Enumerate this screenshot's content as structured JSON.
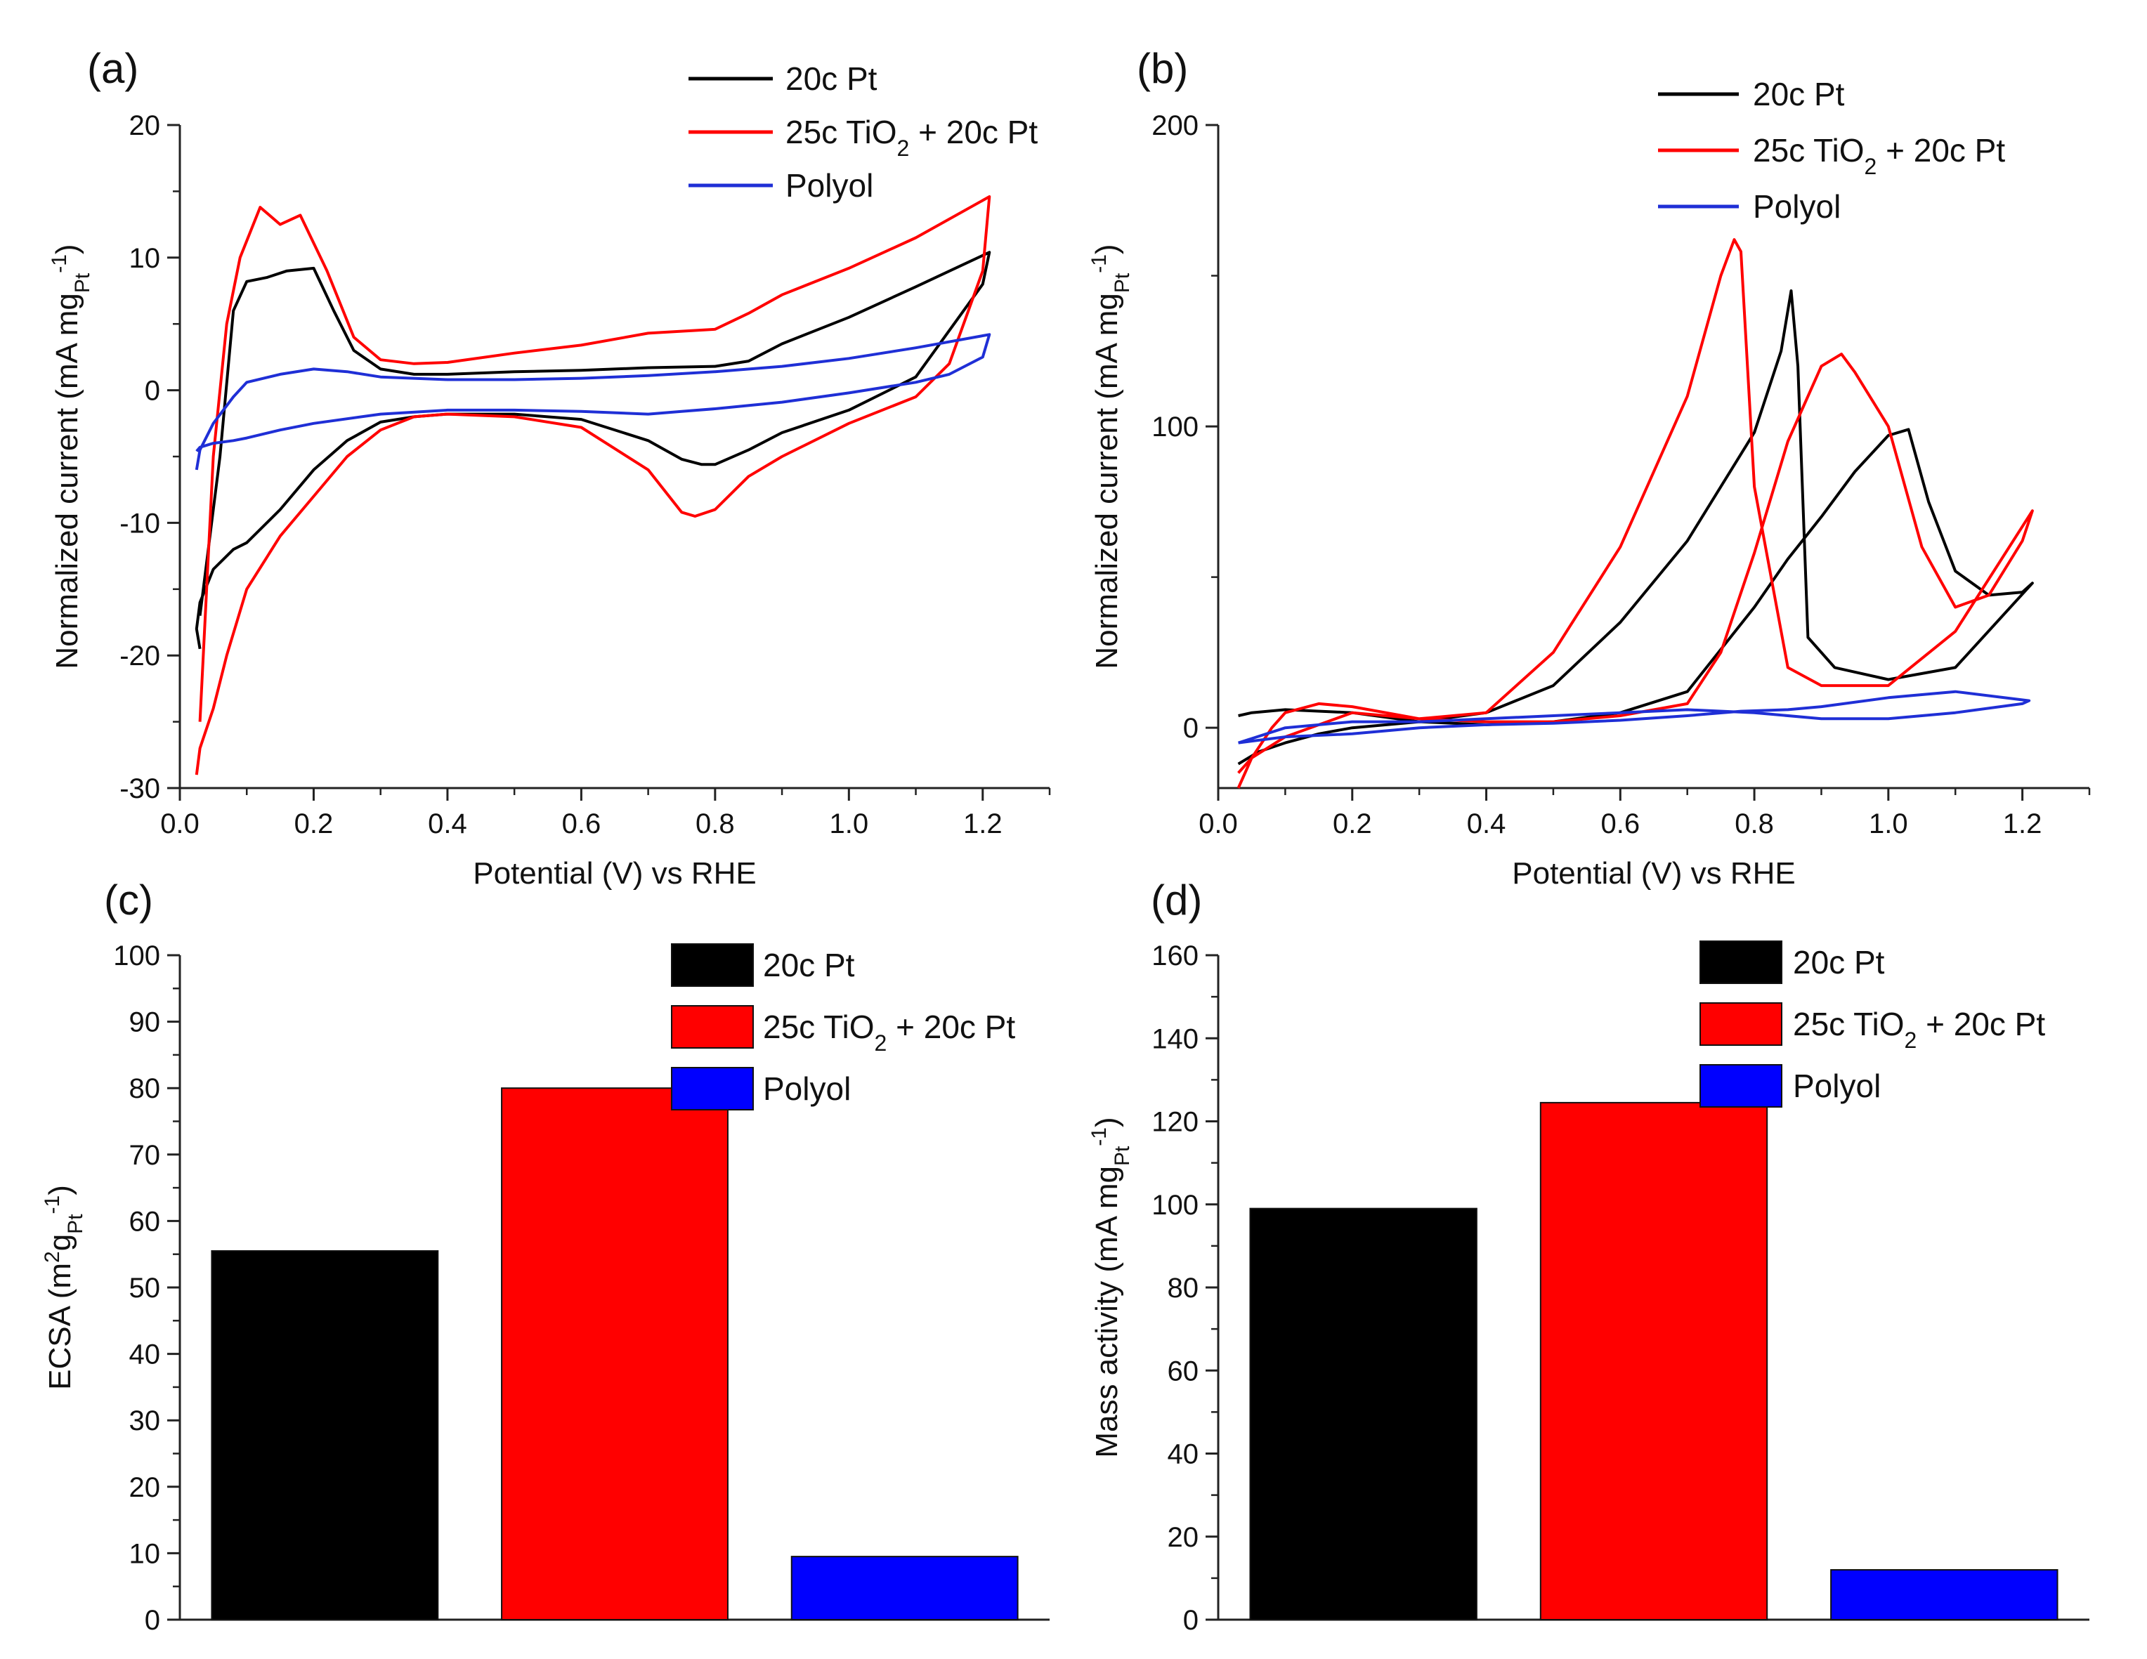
{
  "chart_data": [
    {
      "panel_label": "(a)",
      "type": "line",
      "xlabel": "Potential (V) vs RHE",
      "ylabel": "Normalized current (mA mg",
      "ylabel_sub": "Pt",
      "ylabel_sup": "-1",
      "ylabel_end": ")",
      "xlim": [
        0.0,
        1.3
      ],
      "ylim": [
        -30,
        20
      ],
      "xticks": [
        0.0,
        0.2,
        0.4,
        0.6,
        0.8,
        1.0,
        1.2
      ],
      "xtick_labels": [
        "0.0",
        "0.2",
        "0.4",
        "0.6",
        "0.8",
        "1.0",
        "1.2"
      ],
      "yticks": [
        -30,
        -20,
        -10,
        0,
        10,
        20
      ],
      "ytick_labels": [
        "-30",
        "-20",
        "-10",
        "0",
        "10",
        "20"
      ],
      "legend": [
        "20c Pt",
        "25c TiO|2| + 20c Pt",
        "Polyol"
      ],
      "series": [
        {
          "name": "20c Pt",
          "color": "#000000",
          "x": [
            0.03,
            0.06,
            0.08,
            0.1,
            0.13,
            0.16,
            0.2,
            0.23,
            0.26,
            0.3,
            0.35,
            0.4,
            0.5,
            0.6,
            0.7,
            0.8,
            0.85,
            0.9,
            1.0,
            1.1,
            1.21,
            1.2,
            1.1,
            1.0,
            0.9,
            0.85,
            0.8,
            0.78,
            0.75,
            0.7,
            0.6,
            0.5,
            0.4,
            0.35,
            0.3,
            0.25,
            0.2,
            0.15,
            0.1,
            0.08,
            0.05,
            0.03,
            0.025,
            0.03
          ],
          "y": [
            -17,
            -5,
            6,
            8.2,
            8.5,
            9.0,
            9.2,
            6,
            3,
            1.6,
            1.2,
            1.2,
            1.4,
            1.5,
            1.7,
            1.8,
            2.2,
            3.5,
            5.5,
            7.8,
            10.4,
            8,
            1,
            -1.5,
            -3.2,
            -4.5,
            -5.6,
            -5.6,
            -5.2,
            -3.8,
            -2.2,
            -1.8,
            -1.8,
            -2,
            -2.4,
            -3.8,
            -6,
            -9,
            -11.5,
            -12,
            -13.5,
            -16,
            -18,
            -19.5
          ]
        },
        {
          "name": "25c TiO2 + 20c Pt",
          "color": "#ff0000",
          "x": [
            0.03,
            0.05,
            0.07,
            0.09,
            0.12,
            0.15,
            0.18,
            0.22,
            0.26,
            0.3,
            0.35,
            0.4,
            0.5,
            0.6,
            0.7,
            0.8,
            0.85,
            0.9,
            1.0,
            1.1,
            1.21,
            1.2,
            1.15,
            1.1,
            1.0,
            0.9,
            0.85,
            0.8,
            0.77,
            0.75,
            0.7,
            0.6,
            0.5,
            0.4,
            0.35,
            0.3,
            0.25,
            0.2,
            0.15,
            0.1,
            0.07,
            0.05,
            0.03,
            0.025
          ],
          "y": [
            -25,
            -5,
            5,
            10,
            13.8,
            12.5,
            13.2,
            9,
            4,
            2.3,
            2,
            2.1,
            2.8,
            3.4,
            4.3,
            4.6,
            5.8,
            7.2,
            9.2,
            11.5,
            14.6,
            9,
            2,
            -0.5,
            -2.5,
            -5,
            -6.5,
            -9,
            -9.5,
            -9.2,
            -6,
            -2.8,
            -2,
            -1.8,
            -2,
            -3,
            -5,
            -8,
            -11,
            -15,
            -20,
            -24,
            -27,
            -29
          ]
        },
        {
          "name": "Polyol",
          "color": "#1f2fd6",
          "x": [
            0.025,
            0.03,
            0.05,
            0.08,
            0.1,
            0.15,
            0.2,
            0.25,
            0.3,
            0.4,
            0.5,
            0.6,
            0.7,
            0.8,
            0.9,
            1.0,
            1.1,
            1.21,
            1.2,
            1.15,
            1.1,
            1.0,
            0.9,
            0.8,
            0.75,
            0.7,
            0.6,
            0.5,
            0.4,
            0.3,
            0.2,
            0.15,
            0.1,
            0.08,
            0.05,
            0.03,
            0.025
          ],
          "y": [
            -6,
            -4.5,
            -2.5,
            -0.5,
            0.6,
            1.2,
            1.6,
            1.4,
            1.0,
            0.8,
            0.8,
            0.9,
            1.1,
            1.4,
            1.8,
            2.4,
            3.2,
            4.2,
            2.5,
            1.2,
            0.6,
            -0.2,
            -0.9,
            -1.4,
            -1.6,
            -1.8,
            -1.6,
            -1.5,
            -1.5,
            -1.8,
            -2.5,
            -3.0,
            -3.6,
            -3.8,
            -4.0,
            -4.3,
            -4.6
          ]
        }
      ]
    },
    {
      "panel_label": "(b)",
      "type": "line",
      "xlabel": "Potential (V) vs RHE",
      "ylabel": "Normalized current (mA mg",
      "ylabel_sub": "Pt",
      "ylabel_sup": "-1",
      "ylabel_end": ")",
      "xlim": [
        0.0,
        1.3
      ],
      "ylim": [
        -20,
        200
      ],
      "xticks": [
        0.0,
        0.2,
        0.4,
        0.6,
        0.8,
        1.0,
        1.2
      ],
      "xtick_labels": [
        "0.0",
        "0.2",
        "0.4",
        "0.6",
        "0.8",
        "1.0",
        "1.2"
      ],
      "yticks": [
        0,
        100,
        200
      ],
      "ytick_labels": [
        "0",
        "100",
        "200"
      ],
      "legend": [
        "20c Pt",
        "25c TiO|2| + 20c Pt",
        "Polyol"
      ],
      "series": [
        {
          "name": "20c Pt",
          "color": "#000000",
          "x": [
            0.03,
            0.06,
            0.1,
            0.15,
            0.2,
            0.3,
            0.4,
            0.5,
            0.6,
            0.7,
            0.8,
            0.84,
            0.855,
            0.865,
            0.88,
            0.92,
            1.0,
            1.1,
            1.215,
            1.2,
            1.15,
            1.1,
            1.06,
            1.03,
            1.0,
            0.95,
            0.9,
            0.85,
            0.8,
            0.7,
            0.6,
            0.5,
            0.4,
            0.3,
            0.2,
            0.1,
            0.05,
            0.03
          ],
          "y": [
            -12,
            -8,
            -5,
            -2,
            0,
            2,
            5,
            14,
            35,
            62,
            98,
            125,
            145,
            120,
            30,
            20,
            16,
            20,
            48,
            45,
            44,
            52,
            75,
            99,
            97,
            85,
            70,
            56,
            40,
            12,
            5,
            2,
            1,
            2,
            5,
            6,
            5,
            4
          ]
        },
        {
          "name": "25c TiO2 + 20c Pt",
          "color": "#ff0000",
          "x": [
            0.03,
            0.05,
            0.08,
            0.1,
            0.15,
            0.2,
            0.3,
            0.4,
            0.5,
            0.6,
            0.7,
            0.75,
            0.77,
            0.78,
            0.8,
            0.85,
            0.9,
            1.0,
            1.1,
            1.215,
            1.2,
            1.15,
            1.1,
            1.05,
            1.0,
            0.95,
            0.93,
            0.9,
            0.85,
            0.8,
            0.75,
            0.7,
            0.6,
            0.5,
            0.4,
            0.3,
            0.2,
            0.1,
            0.05,
            0.03
          ],
          "y": [
            -20,
            -10,
            0,
            5,
            8,
            7,
            3,
            5,
            25,
            60,
            110,
            150,
            162,
            158,
            80,
            20,
            14,
            14,
            32,
            72,
            62,
            44,
            40,
            60,
            100,
            118,
            124,
            120,
            95,
            58,
            25,
            8,
            4,
            2,
            2,
            3,
            5,
            -3,
            -10,
            -15
          ]
        },
        {
          "name": "Polyol",
          "color": "#1f2fd6",
          "x": [
            0.03,
            0.1,
            0.2,
            0.3,
            0.4,
            0.5,
            0.6,
            0.7,
            0.78,
            0.85,
            0.9,
            1.0,
            1.05,
            1.1,
            1.21,
            1.2,
            1.1,
            1.0,
            0.9,
            0.8,
            0.7,
            0.6,
            0.5,
            0.4,
            0.3,
            0.2,
            0.1,
            0.03
          ],
          "y": [
            -5,
            -3,
            -2,
            0,
            1,
            1.5,
            2.5,
            4,
            5.5,
            6,
            7,
            10,
            11,
            12,
            9,
            8,
            5,
            3,
            3,
            5,
            6,
            5,
            4,
            3,
            2,
            2,
            0,
            -5
          ]
        }
      ]
    },
    {
      "panel_label": "(c)",
      "type": "bar",
      "categories": [
        "20c Pt",
        "25c TiO|2| + 20c Pt",
        "Polyol"
      ],
      "values": [
        55.5,
        80,
        9.5
      ],
      "colors": [
        "#000000",
        "#ff0000",
        "#0000ff"
      ],
      "xlabel": "",
      "ylabel": "ECSA (m",
      "ylabel_sup1": "2",
      "ylabel_mid": "g",
      "ylabel_sub": "Pt",
      "ylabel_sup": "-1",
      "ylabel_end": ")",
      "ylim": [
        0,
        100
      ],
      "yticks": [
        0,
        10,
        20,
        30,
        40,
        50,
        60,
        70,
        80,
        90,
        100
      ],
      "ytick_labels": [
        "0",
        "10",
        "20",
        "30",
        "40",
        "50",
        "60",
        "70",
        "80",
        "90",
        "100"
      ],
      "legend": [
        "20c Pt",
        "25c TiO|2| + 20c Pt",
        "Polyol"
      ]
    },
    {
      "panel_label": "(d)",
      "type": "bar",
      "categories": [
        "20c Pt",
        "25c TiO|2| + 20c Pt",
        "Polyol"
      ],
      "values": [
        99,
        124.5,
        12
      ],
      "colors": [
        "#000000",
        "#ff0000",
        "#0000ff"
      ],
      "xlabel": "",
      "ylabel": "Mass activity (mA mg",
      "ylabel_sub": "Pt",
      "ylabel_sup": "-1",
      "ylabel_end": ")",
      "ylim": [
        0,
        160
      ],
      "yticks": [
        0,
        20,
        40,
        60,
        80,
        100,
        120,
        140,
        160
      ],
      "ytick_labels": [
        "0",
        "20",
        "40",
        "60",
        "80",
        "100",
        "120",
        "140",
        "160"
      ],
      "legend": [
        "20c Pt",
        "25c TiO|2| + 20c Pt",
        "Polyol"
      ]
    }
  ]
}
